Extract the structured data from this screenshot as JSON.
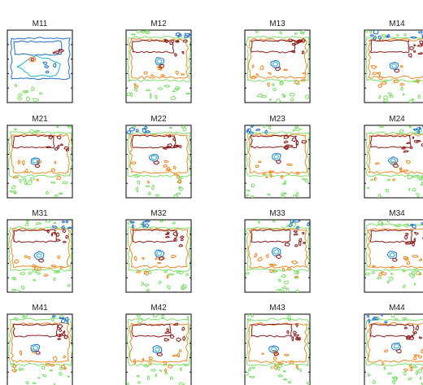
{
  "figure": {
    "panels": [
      {
        "id": "M11",
        "title": "M11",
        "variant": "wide-blue"
      },
      {
        "id": "M12",
        "title": "M12",
        "variant": "standard"
      },
      {
        "id": "M13",
        "title": "M13",
        "variant": "standard"
      },
      {
        "id": "M14",
        "title": "M14",
        "variant": "standard"
      },
      {
        "id": "M21",
        "title": "M21",
        "variant": "standard"
      },
      {
        "id": "M22",
        "title": "M22",
        "variant": "standard"
      },
      {
        "id": "M23",
        "title": "M23",
        "variant": "standard"
      },
      {
        "id": "M24",
        "title": "M24",
        "variant": "standard"
      },
      {
        "id": "M31",
        "title": "M31",
        "variant": "standard"
      },
      {
        "id": "M32",
        "title": "M32",
        "variant": "standard"
      },
      {
        "id": "M33",
        "title": "M33",
        "variant": "standard"
      },
      {
        "id": "M34",
        "title": "M34",
        "variant": "standard"
      },
      {
        "id": "M41",
        "title": "M41",
        "variant": "standard"
      },
      {
        "id": "M42",
        "title": "M42",
        "variant": "standard"
      },
      {
        "id": "M43",
        "title": "M43",
        "variant": "standard"
      },
      {
        "id": "M44",
        "title": "M44",
        "variant": "standard"
      }
    ],
    "contour_colors": {
      "outer": "#7ddf6a",
      "middle": "#f08a24",
      "inner": "#8b1a1a",
      "core": "#1f6fd1",
      "accent": "#1fb8c9"
    }
  }
}
